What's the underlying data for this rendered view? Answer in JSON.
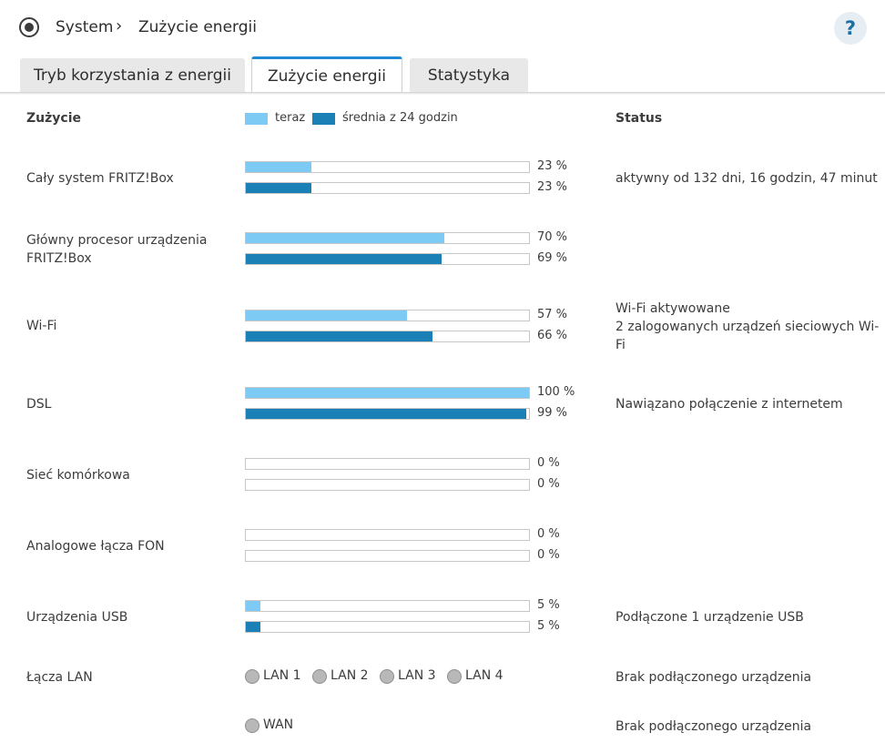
{
  "breadcrumb": {
    "root": "System",
    "separator": "›",
    "current": "Zużycie energii"
  },
  "help": {
    "label": "?"
  },
  "tabs": [
    {
      "label": "Tryb korzystania z energii",
      "active": false
    },
    {
      "label": "Zużycie energii",
      "active": true
    },
    {
      "label": "Statystyka",
      "active": false
    }
  ],
  "table": {
    "col_usage": "Zużycie",
    "col_status": "Status",
    "legend": {
      "now": "teraz",
      "avg": "średnia z 24 godzin"
    },
    "colors": {
      "now": "#7dcbf5",
      "avg": "#1a80b6"
    },
    "rows": [
      {
        "label": "Cały system FRITZ!Box",
        "now": 23,
        "avg": 23,
        "now_text": "23 %",
        "avg_text": "23 %",
        "status": "aktywny od 132 dni, 16 godzin, 47 minut"
      },
      {
        "label": "Główny procesor urządzenia FRITZ!Box",
        "now": 70,
        "avg": 69,
        "now_text": "70 %",
        "avg_text": "69 %",
        "status": ""
      },
      {
        "label": "Wi-Fi",
        "now": 57,
        "avg": 66,
        "now_text": "57 %",
        "avg_text": "66 %",
        "status": "Wi-Fi aktywowane\n2 zalogowanych urządzeń sieciowych Wi-Fi"
      },
      {
        "label": "DSL",
        "now": 100,
        "avg": 99,
        "now_text": "100 %",
        "avg_text": "99 %",
        "status": "Nawiązano połączenie z internetem"
      },
      {
        "label": "Sieć komórkowa",
        "now": 0,
        "avg": 0,
        "now_text": "0 %",
        "avg_text": "0 %",
        "status": ""
      },
      {
        "label": "Analogowe łącza FON",
        "now": 0,
        "avg": 0,
        "now_text": "0 %",
        "avg_text": "0 %",
        "status": ""
      },
      {
        "label": "Urządzenia USB",
        "now": 5,
        "avg": 5,
        "now_text": "5 %",
        "avg_text": "5 %",
        "status": "Podłączone 1 urządzenie USB"
      }
    ],
    "lan": {
      "label": "Łącza LAN",
      "ports": [
        "LAN 1",
        "LAN 2",
        "LAN 3",
        "LAN 4"
      ],
      "status": "Brak podłączonego urządzenia",
      "led_state": "off"
    },
    "wan": {
      "port": "WAN",
      "status": "Brak podłączonego urządzenia",
      "led_state": "off"
    }
  }
}
